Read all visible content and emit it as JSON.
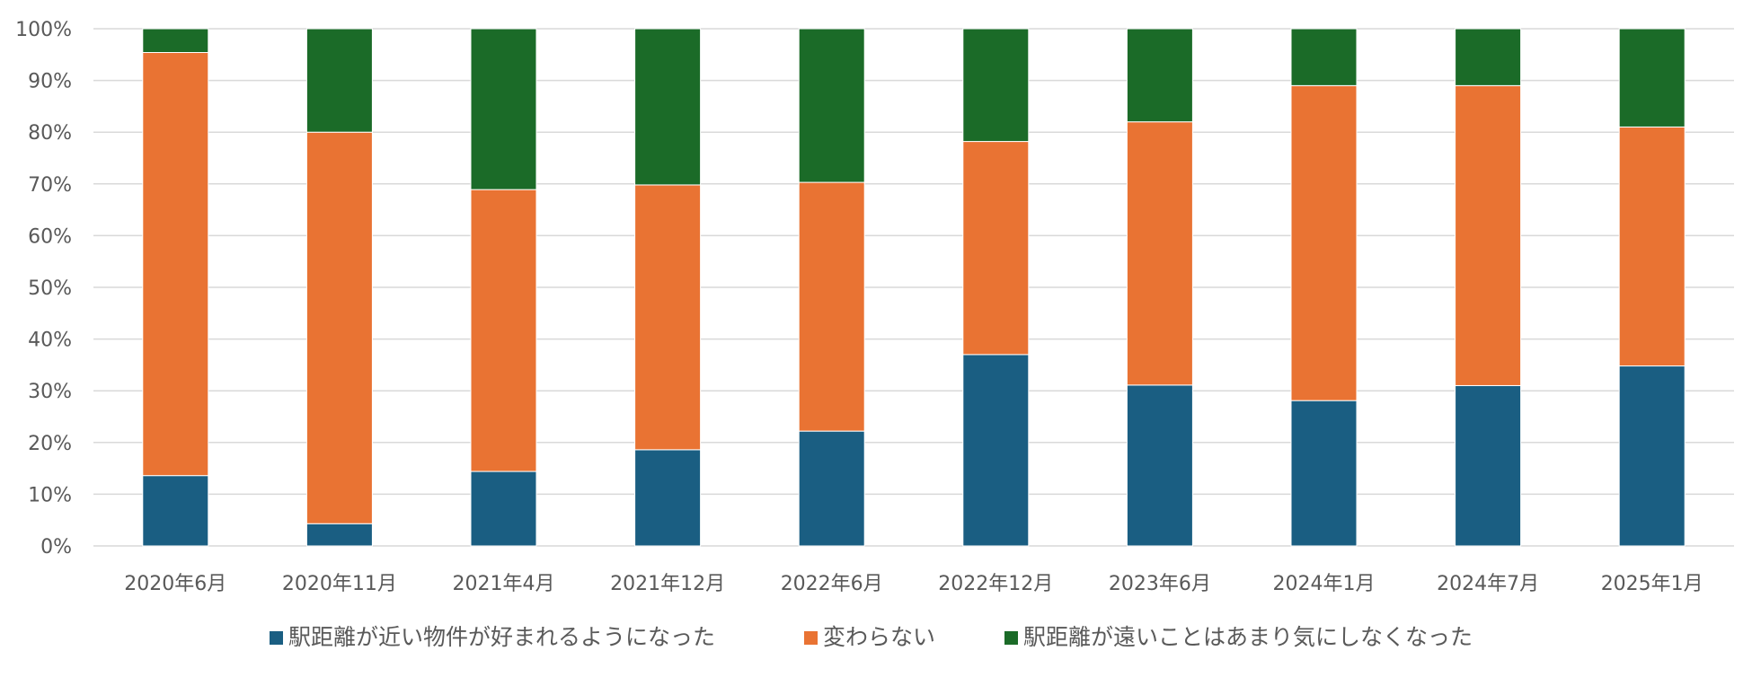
{
  "chart_data": {
    "type": "bar",
    "stacked": true,
    "title": "",
    "xlabel": "",
    "ylabel": "",
    "ylim": [
      0,
      100
    ],
    "y_tick_step": 10,
    "y_tick_suffix": "%",
    "grid": "horizontal",
    "legend_position": "bottom",
    "categories": [
      "2020年6月",
      "2020年11月",
      "2021年4月",
      "2021年12月",
      "2022年6月",
      "2022年12月",
      "2023年6月",
      "2024年1月",
      "2024年7月",
      "2025年1月"
    ],
    "series": [
      {
        "name": "駅距離が近い物件が好まれるようになった",
        "color": "#1a5e82",
        "values": [
          13.6,
          4.3,
          14.4,
          18.6,
          22.2,
          37.0,
          31.1,
          28.1,
          31.0,
          34.8
        ]
      },
      {
        "name": "変わらない",
        "color": "#e97333",
        "values": [
          81.8,
          75.7,
          54.5,
          51.2,
          48.1,
          41.2,
          50.9,
          60.9,
          58.0,
          46.2
        ]
      },
      {
        "name": "駅距離が遠いことはあまり気にしなくなった",
        "color": "#1b6b28",
        "values": [
          4.6,
          20.0,
          31.1,
          30.2,
          29.7,
          21.8,
          18.0,
          11.0,
          11.0,
          19.0
        ]
      }
    ]
  }
}
